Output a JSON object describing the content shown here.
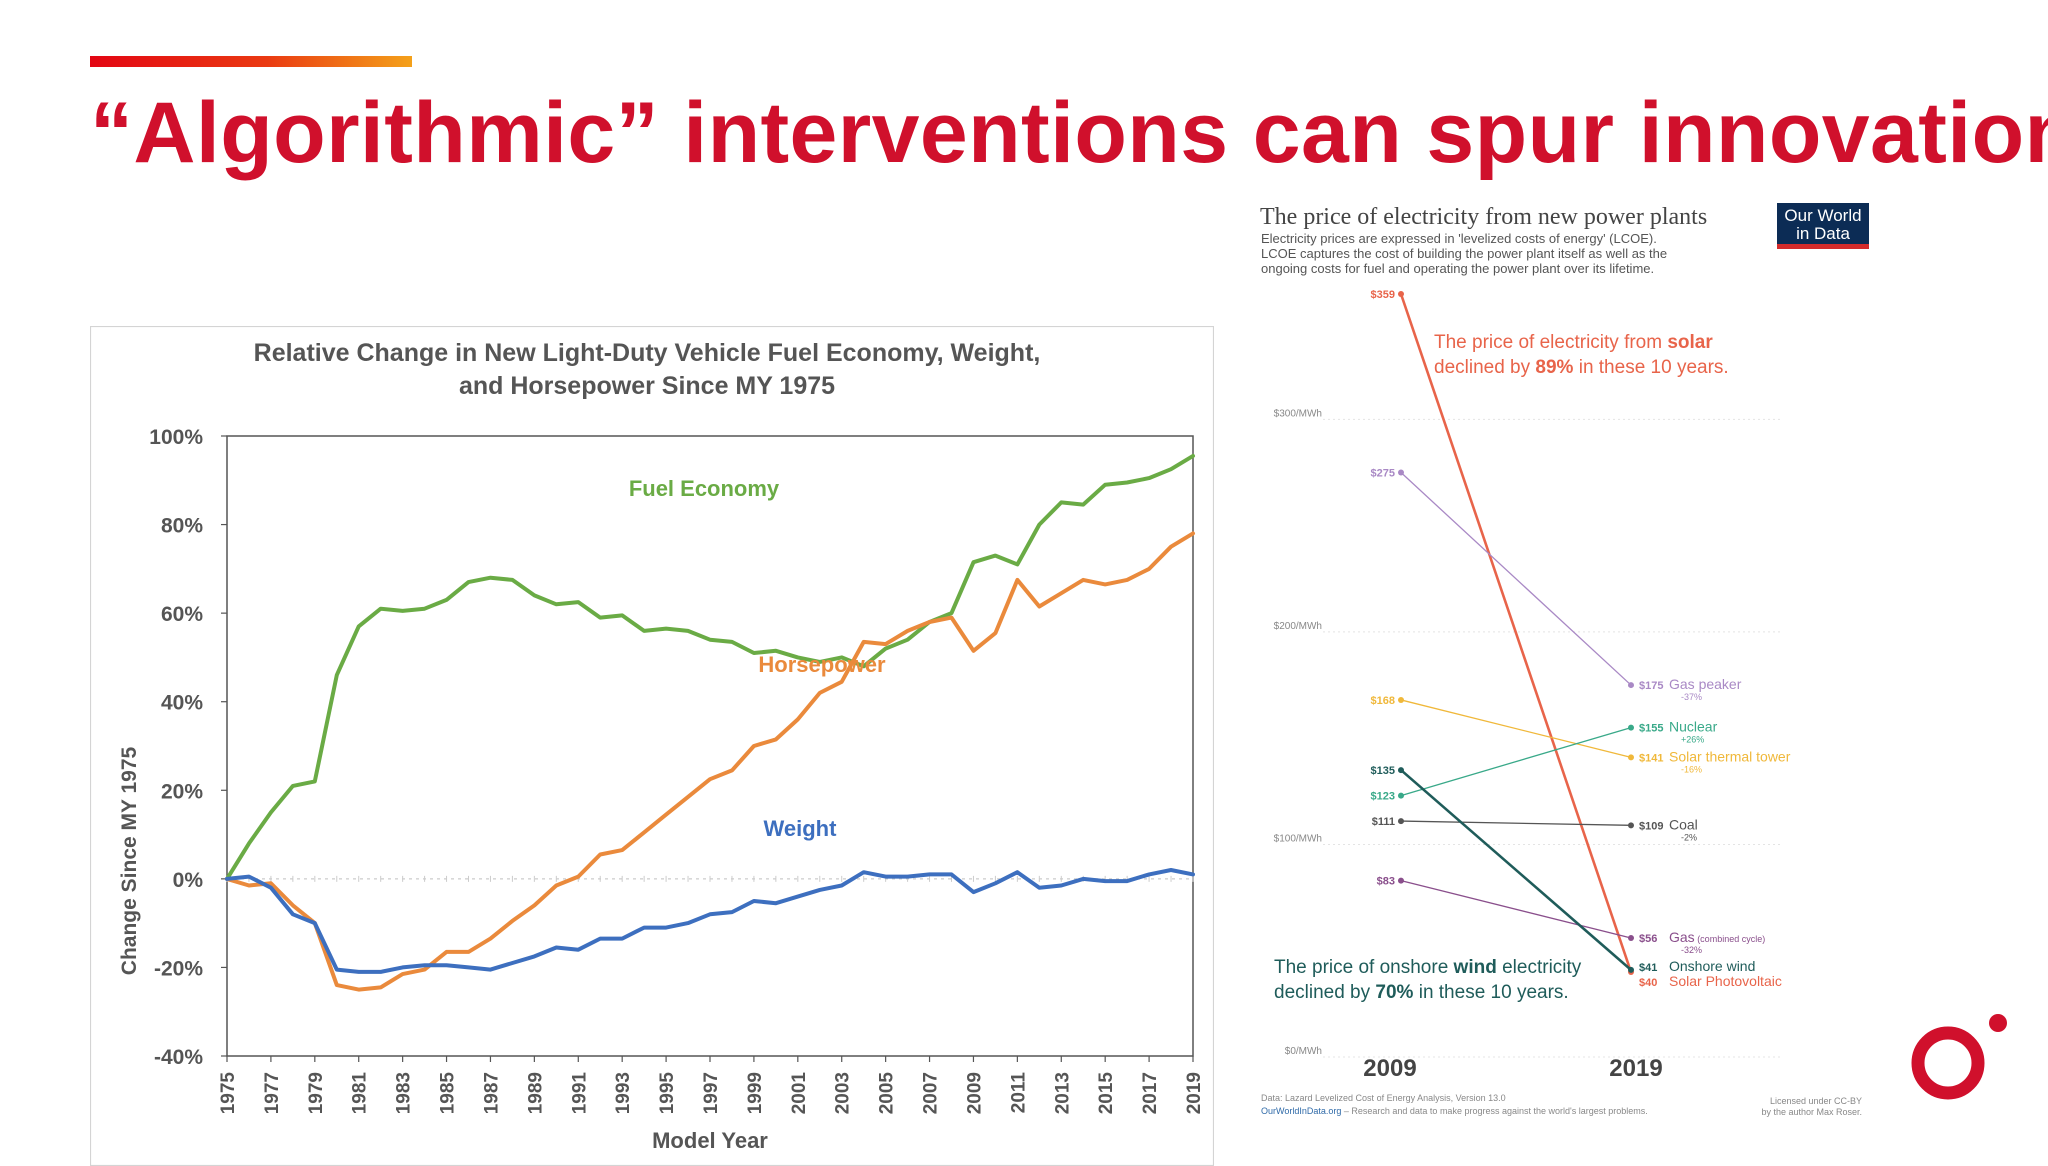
{
  "slide": {
    "title": "“Algorithmic” interventions can spur innovation",
    "colors": {
      "accent": "#d0102c",
      "gradient_start": "#e30613",
      "gradient_end": "#f4a11a"
    },
    "logo_icon": "brand-ring-logo"
  },
  "chart_data": [
    {
      "type": "line",
      "title": "Relative Change in New Light-Duty Vehicle Fuel Economy, Weight, and Horsepower Since MY 1975",
      "title_lines": [
        "Relative Change in New Light-Duty Vehicle Fuel Economy, Weight,",
        "and Horsepower Since MY 1975"
      ],
      "xlabel": "Model Year",
      "ylabel": "Change Since MY 1975",
      "xlim": [
        1975,
        2019
      ],
      "ylim": [
        -40,
        100
      ],
      "y_ticks": [
        -40,
        -20,
        0,
        20,
        40,
        60,
        80,
        100
      ],
      "y_tick_labels": [
        "-40%",
        "-20%",
        "0%",
        "20%",
        "40%",
        "60%",
        "80%",
        "100%"
      ],
      "x_ticks": [
        1975,
        1977,
        1979,
        1981,
        1983,
        1985,
        1987,
        1989,
        1991,
        1993,
        1995,
        1997,
        1999,
        2001,
        2003,
        2005,
        2007,
        2009,
        2011,
        2013,
        2015,
        2017,
        2019
      ],
      "x_tick_labels": [
        "1975",
        "1977",
        "1979",
        "1981",
        "1983",
        "1985",
        "1987",
        "1989",
        "1991",
        "1993",
        "1995",
        "1997",
        "1999",
        "2001",
        "2003",
        "2005",
        "2007",
        "2009",
        "2011",
        "2013",
        "2015",
        "2017",
        "2019"
      ],
      "x": [
        1975,
        1976,
        1977,
        1978,
        1979,
        1980,
        1981,
        1982,
        1983,
        1984,
        1985,
        1986,
        1987,
        1988,
        1989,
        1990,
        1991,
        1992,
        1993,
        1994,
        1995,
        1996,
        1997,
        1998,
        1999,
        2000,
        2001,
        2002,
        2003,
        2004,
        2005,
        2006,
        2007,
        2008,
        2009,
        2010,
        2011,
        2012,
        2013,
        2014,
        2015,
        2016,
        2017,
        2018,
        2019
      ],
      "series": [
        {
          "name": "Fuel Economy",
          "color": "#6aab45",
          "values": [
            0,
            8,
            15,
            21,
            22,
            46,
            57,
            61,
            60.5,
            61,
            63,
            67,
            68,
            67.5,
            64,
            62,
            62.5,
            59,
            59.5,
            56,
            56.5,
            56,
            54,
            53.5,
            51,
            51.5,
            50,
            49,
            50,
            48,
            52,
            54,
            58,
            60,
            71.5,
            73,
            71,
            80,
            85,
            84.5,
            89,
            89.5,
            90.5,
            92.5,
            95.5
          ]
        },
        {
          "name": "Horsepower",
          "color": "#ea8a3c",
          "values": [
            0,
            -1.5,
            -1,
            -6,
            -10,
            -24,
            -25,
            -24.5,
            -21.5,
            -20.5,
            -16.5,
            -16.5,
            -13.5,
            -9.5,
            -6,
            -1.5,
            0.5,
            5.5,
            6.5,
            10.5,
            14.5,
            18.5,
            22.5,
            24.5,
            30,
            31.5,
            36,
            42,
            44.5,
            53.5,
            53,
            56,
            58,
            59,
            51.5,
            55.5,
            67.5,
            61.5,
            64.5,
            67.5,
            66.5,
            67.5,
            70,
            75,
            78
          ]
        },
        {
          "name": "Weight",
          "color": "#3d6fbf",
          "values": [
            0,
            0.5,
            -2,
            -8,
            -10,
            -20.5,
            -21,
            -21,
            -20,
            -19.5,
            -19.5,
            -20,
            -20.5,
            -19,
            -17.5,
            -15.5,
            -16,
            -13.5,
            -13.5,
            -11,
            -11,
            -10,
            -8,
            -7.5,
            -5,
            -5.5,
            -4,
            -2.5,
            -1.5,
            1.5,
            0.5,
            0.5,
            1,
            1,
            -3,
            -1,
            1.5,
            -2,
            -1.5,
            0,
            -0.5,
            -0.5,
            1,
            2,
            1
          ]
        }
      ]
    },
    {
      "type": "slope",
      "title": "The price of electricity from new power plants",
      "source_badge": [
        "Our World",
        "in Data"
      ],
      "subtitle_lines": [
        "Electricity prices are expressed in 'levelized costs of energy' (LCOE).",
        "LCOE captures the cost of building the power plant itself as well as the",
        "ongoing costs for fuel and operating the power plant over its lifetime."
      ],
      "x_categories": [
        "2009",
        "2019"
      ],
      "ylim": [
        0,
        359
      ],
      "y_gridlines": [
        0,
        100,
        200,
        300
      ],
      "y_grid_labels": [
        "$0/MWh",
        "$100/MWh",
        "$200/MWh",
        "$300/MWh"
      ],
      "series": [
        {
          "name": "Solar Photovoltaic",
          "color": "#e8644a",
          "start": 359,
          "end": 40,
          "start_label": "$359",
          "end_label": "$40",
          "change": ""
        },
        {
          "name": "Gas peaker",
          "color": "#a989c5",
          "start": 275,
          "end": 175,
          "start_label": "$275",
          "end_label": "$175",
          "change": "-37%"
        },
        {
          "name": "Solar thermal tower",
          "color": "#f0b83a",
          "start": 168,
          "end": 141,
          "start_label": "$168",
          "end_label": "$141",
          "change": "-16%"
        },
        {
          "name": "Nuclear",
          "color": "#39a989",
          "start": 123,
          "end": 155,
          "start_label": "$123",
          "end_label": "$155",
          "change": "+26%"
        },
        {
          "name": "Coal",
          "color": "#555555",
          "start": 111,
          "end": 109,
          "start_label": "$111",
          "end_label": "$109",
          "change": "-2%"
        },
        {
          "name": "Gas",
          "name_suffix": "(combined cycle)",
          "color": "#8a4f8c",
          "start": 83,
          "end": 56,
          "start_label": "$83",
          "end_label": "$56",
          "change": "-32%"
        },
        {
          "name": "Onshore wind",
          "color": "#1f5c5a",
          "start": 135,
          "end": 41,
          "start_label": "$135",
          "end_label": "$41",
          "change": ""
        }
      ],
      "annotations": {
        "solar": {
          "pre": "The price of electricity from ",
          "key": "solar",
          "line2_pre": "declined by ",
          "pct": "89%",
          "line2_post": " in these 10 years."
        },
        "wind": {
          "pre": "The price of onshore ",
          "key": "wind",
          "post": " electricity",
          "line2_pre": "declined by ",
          "pct": "70%",
          "line2_post": " in these 10 years."
        }
      },
      "footer": {
        "data_source": "Data: Lazard Levelized Cost of Energy Analysis, Version 13.0",
        "site": "OurWorldInData.org",
        "site_desc": " – Research and data to make progress against the world's largest problems.",
        "license_lines": [
          "Licensed under CC-BY",
          "by the author Max Roser."
        ]
      }
    }
  ]
}
